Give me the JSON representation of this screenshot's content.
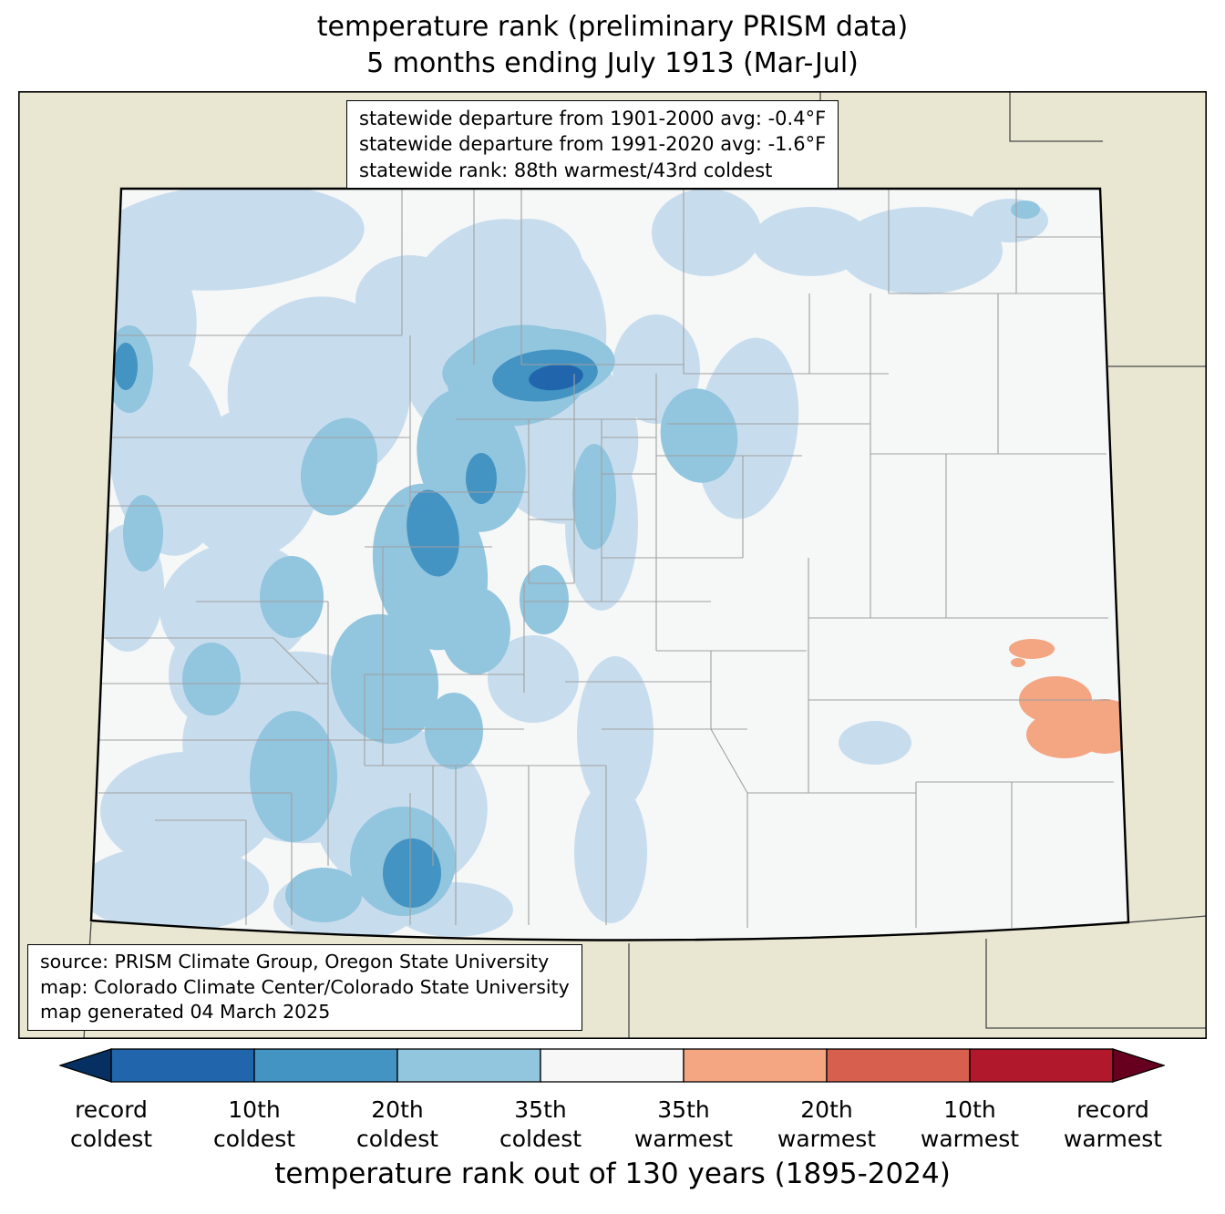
{
  "title": {
    "line1": "temperature rank (preliminary PRISM data)",
    "line2": "5 months ending July 1913 (Mar-Jul)"
  },
  "stats_box": {
    "lines": [
      "statewide departure from 1901-2000 avg: -0.4°F",
      "statewide departure from 1991-2020 avg: -1.6°F",
      "statewide rank: 88th warmest/43rd coldest"
    ]
  },
  "source_box": {
    "lines": [
      "source: PRISM Climate Group, Oregon State University",
      "map: Colorado Climate Center/Colorado State University",
      "map generated 04 March 2025"
    ]
  },
  "colorbar": {
    "labels": [
      "record\ncoldest",
      "10th\ncoldest",
      "20th\ncoldest",
      "35th\ncoldest",
      "35th\nwarmest",
      "20th\nwarmest",
      "10th\nwarmest",
      "record\nwarmest"
    ],
    "colors": {
      "arrow_left": "#053061",
      "segments": [
        "#2166ac",
        "#4393c3",
        "#92c5de",
        "#f7f7f7",
        "#f4a582",
        "#d6604d",
        "#b2182b"
      ],
      "arrow_right": "#67001f"
    },
    "caption": "temperature rank out of 130 years (1895-2024)"
  },
  "map": {
    "palette": {
      "cold_light": "#c7ddee",
      "cold_mid": "#92c5de",
      "cold_dark": "#4393c3",
      "cold_darkest": "#2166ac",
      "warm_light": "#f4a582",
      "state_fill": "#f6f7f7",
      "outside": "#e9e7d2",
      "county_line": "#a0a0a0",
      "border_color": "#000000"
    }
  }
}
